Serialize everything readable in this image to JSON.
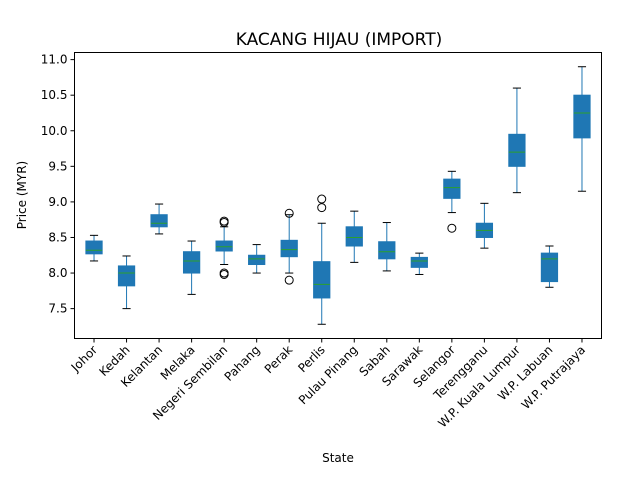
{
  "chart_data": {
    "type": "boxplot",
    "title": "KACANG HIJAU (IMPORT)",
    "xlabel": "State",
    "ylabel": "Price (MYR)",
    "ylim": [
      7.08,
      11.1
    ],
    "yticks": [
      7.5,
      8.0,
      8.5,
      9.0,
      9.5,
      10.0,
      10.5,
      11.0
    ],
    "ytick_labels": [
      "7.5",
      "8.0",
      "8.5",
      "9.0",
      "9.5",
      "10.0",
      "10.5",
      "11.0"
    ],
    "grid": false,
    "legend": "none",
    "colors": {
      "box_fill": "#1f77b4",
      "box_edge": "#1f77b4",
      "whisker": "#1f77b4",
      "cap": "#000000",
      "median": "#2ca02c",
      "flier": "#000000"
    },
    "categories": [
      "Johor",
      "Kedah",
      "Kelantan",
      "Melaka",
      "Negeri Sembilan",
      "Pahang",
      "Perak",
      "Perlis",
      "Pulau Pinang",
      "Sabah",
      "Sarawak",
      "Selangor",
      "Terengganu",
      "W.P. Kuala Lumpur",
      "W.P. Labuan",
      "W.P. Putrajaya"
    ],
    "boxes": [
      {
        "whislo": 8.17,
        "q1": 8.27,
        "med": 8.32,
        "q3": 8.45,
        "whishi": 8.53,
        "fliers": []
      },
      {
        "whislo": 7.5,
        "q1": 7.82,
        "med": 8.0,
        "q3": 8.1,
        "whishi": 8.24,
        "fliers": []
      },
      {
        "whislo": 8.55,
        "q1": 8.65,
        "med": 8.7,
        "q3": 8.82,
        "whishi": 8.97,
        "fliers": []
      },
      {
        "whislo": 7.7,
        "q1": 8.0,
        "med": 8.17,
        "q3": 8.3,
        "whishi": 8.45,
        "fliers": []
      },
      {
        "whislo": 8.12,
        "q1": 8.31,
        "med": 8.37,
        "q3": 8.45,
        "whishi": 8.65,
        "fliers": [
          7.98,
          8.0,
          8.71,
          8.73
        ]
      },
      {
        "whislo": 8.0,
        "q1": 8.12,
        "med": 8.2,
        "q3": 8.25,
        "whishi": 8.4,
        "fliers": []
      },
      {
        "whislo": 8.0,
        "q1": 8.23,
        "med": 8.33,
        "q3": 8.46,
        "whishi": 8.82,
        "fliers": [
          7.9,
          8.84
        ]
      },
      {
        "whislo": 7.28,
        "q1": 7.65,
        "med": 7.84,
        "q3": 8.16,
        "whishi": 8.7,
        "fliers": [
          8.92,
          9.04
        ]
      },
      {
        "whislo": 8.15,
        "q1": 8.38,
        "med": 8.5,
        "q3": 8.65,
        "whishi": 8.87,
        "fliers": []
      },
      {
        "whislo": 8.03,
        "q1": 8.2,
        "med": 8.3,
        "q3": 8.44,
        "whishi": 8.71,
        "fliers": []
      },
      {
        "whislo": 7.98,
        "q1": 8.08,
        "med": 8.17,
        "q3": 8.22,
        "whishi": 8.28,
        "fliers": []
      },
      {
        "whislo": 8.85,
        "q1": 9.05,
        "med": 9.2,
        "q3": 9.32,
        "whishi": 9.43,
        "fliers": [
          8.63
        ]
      },
      {
        "whislo": 8.35,
        "q1": 8.5,
        "med": 8.6,
        "q3": 8.7,
        "whishi": 8.98,
        "fliers": []
      },
      {
        "whislo": 9.13,
        "q1": 9.5,
        "med": 9.7,
        "q3": 9.95,
        "whishi": 10.6,
        "fliers": []
      },
      {
        "whislo": 7.8,
        "q1": 7.88,
        "med": 8.2,
        "q3": 8.28,
        "whishi": 8.38,
        "fliers": []
      },
      {
        "whislo": 9.15,
        "q1": 9.9,
        "med": 10.25,
        "q3": 10.5,
        "whishi": 10.9,
        "fliers": []
      }
    ]
  }
}
